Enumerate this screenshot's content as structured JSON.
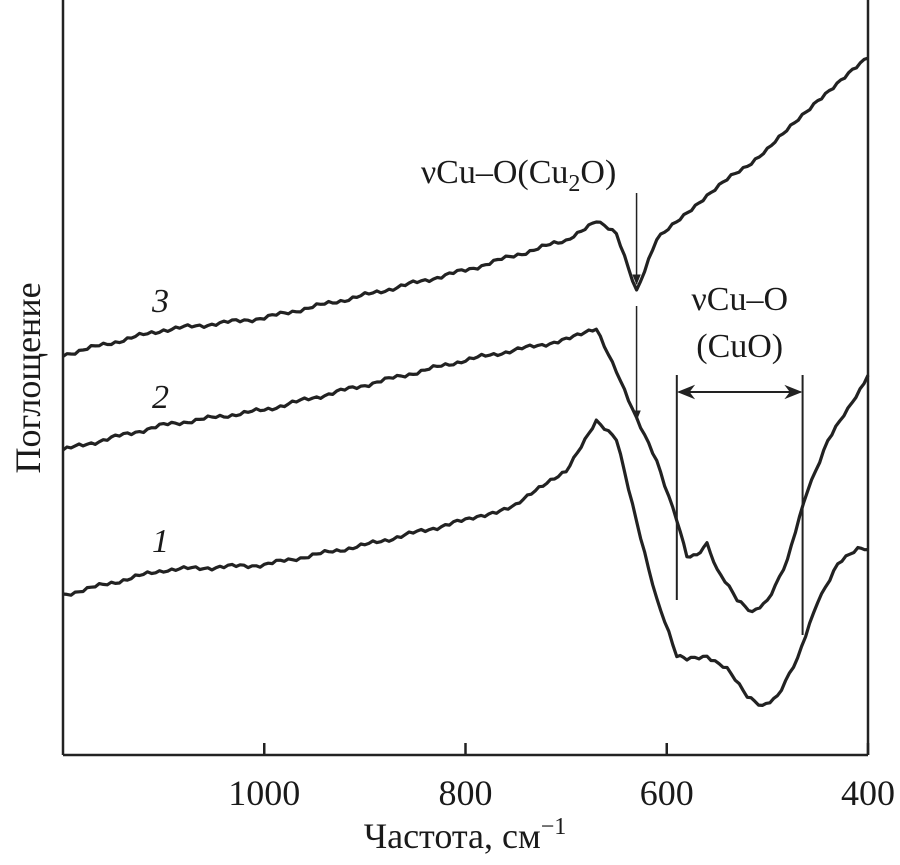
{
  "chart_data": {
    "type": "line",
    "title": "",
    "xlabel": "Частота, см",
    "xlabel_sup": "−1",
    "ylabel": "Поглощение",
    "xlim": [
      1200,
      400
    ],
    "x_reversed": true,
    "ylim": [
      0,
      100
    ],
    "y_units": "arbitrary",
    "grid": false,
    "x_ticks": [
      1000,
      800,
      600,
      400
    ],
    "x_tick_labels": [
      "1000",
      "800",
      "600",
      "400"
    ],
    "series": [
      {
        "name": "3",
        "x": [
          1200,
          1100,
          1000,
          900,
          800,
          700,
          670,
          650,
          630,
          610,
          560,
          500,
          450,
          400
        ],
        "y": [
          53.0,
          56.3,
          57.9,
          60.9,
          64.2,
          68.2,
          70.9,
          68.9,
          61.6,
          68.2,
          74.2,
          80.1,
          86.8,
          92.3
        ]
      },
      {
        "name": "2",
        "x": [
          1200,
          1100,
          1000,
          900,
          800,
          700,
          670,
          650,
          630,
          610,
          590,
          580,
          570,
          560,
          550,
          530,
          515,
          500,
          480,
          460,
          440,
          420,
          400
        ],
        "y": [
          40.4,
          43.7,
          45.7,
          49.0,
          52.3,
          55.0,
          56.3,
          51.0,
          44.4,
          39.1,
          31.1,
          26.5,
          26.5,
          27.8,
          24.5,
          20.5,
          18.9,
          20.5,
          25.8,
          35.1,
          41.7,
          45.7,
          50.3
        ]
      },
      {
        "name": "1",
        "x": [
          1200,
          1100,
          1000,
          900,
          800,
          750,
          700,
          670,
          650,
          630,
          610,
          590,
          580,
          560,
          540,
          520,
          505,
          490,
          470,
          450,
          430,
          410,
          400
        ],
        "y": [
          21.2,
          24.5,
          25.2,
          27.8,
          31.1,
          33.1,
          37.7,
          44.4,
          41.7,
          31.1,
          20.5,
          13.2,
          12.6,
          13.2,
          11.3,
          7.9,
          6.6,
          7.9,
          12.6,
          20.5,
          25.2,
          27.4,
          27.2
        ]
      }
    ],
    "annotations": [
      {
        "text": "νCu–O(Cu",
        "sub": "2",
        "tail": "O)",
        "x": 630
      },
      {
        "text_line1": "νCu–O",
        "text_line2": "(CuO)",
        "x_range": [
          590,
          465
        ]
      }
    ]
  }
}
